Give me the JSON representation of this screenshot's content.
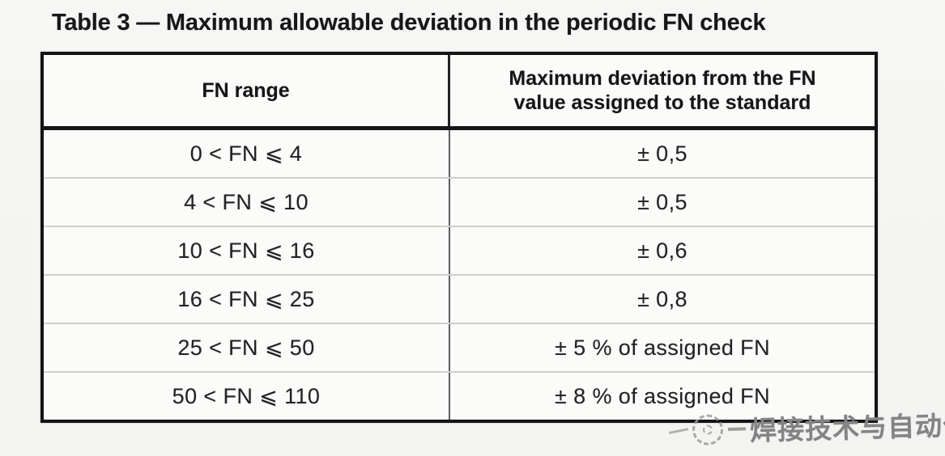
{
  "title": "Table 3 — Maximum allowable deviation in the periodic FN check",
  "table": {
    "columns": [
      "FN range",
      "Maximum deviation from the FN value assigned to the standard"
    ],
    "rows": [
      {
        "range": "0 < FN ⩽ 4",
        "deviation": "± 0,5"
      },
      {
        "range": "4 < FN ⩽ 10",
        "deviation": "± 0,5"
      },
      {
        "range": "10 < FN ⩽ 16",
        "deviation": "± 0,6"
      },
      {
        "range": "16 < FN ⩽ 25",
        "deviation": "± 0,8"
      },
      {
        "range": "25 < FN ⩽ 50",
        "deviation": "± 5 % of assigned FN"
      },
      {
        "range": "50 < FN ⩽ 110",
        "deviation": "± 8 % of assigned FN"
      }
    ]
  },
  "watermark": {
    "text": "焊接技术与自动化",
    "icon": "dashed-circle-logo",
    "color": "#848484"
  }
}
